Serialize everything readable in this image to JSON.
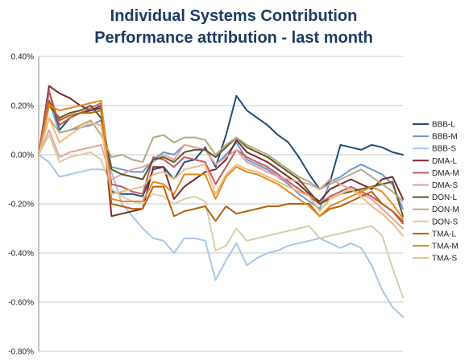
{
  "chart_data": {
    "type": "line",
    "title": "Individual Systems Contribution",
    "subtitle": "Performance attribution - last month",
    "xlabel": "",
    "ylabel": "",
    "ylim": [
      -0.8,
      0.4
    ],
    "yticks": [
      0.4,
      0.2,
      0.0,
      -0.2,
      -0.4,
      -0.6,
      -0.8
    ],
    "ytick_labels": [
      "0.40%",
      "0.20%",
      "0.00%",
      "-0.20%",
      "-0.40%",
      "-0.60%",
      "-0.80%"
    ],
    "grid": true,
    "legend_position": "right",
    "x": [
      0,
      1,
      2,
      3,
      4,
      5,
      6,
      7,
      8,
      9,
      10,
      11,
      12,
      13,
      14,
      15,
      16,
      17,
      18,
      19,
      20,
      21,
      22,
      23,
      24,
      25,
      26,
      27,
      28,
      29,
      30,
      31,
      32,
      33,
      34,
      35
    ],
    "series": [
      {
        "name": "BBB-L",
        "color": "#1f4e79",
        "values": [
          0,
          0.26,
          0.1,
          0.15,
          0.17,
          0.18,
          0.19,
          -0.15,
          -0.16,
          -0.16,
          -0.17,
          -0.06,
          -0.05,
          -0.1,
          -0.03,
          -0.02,
          0.03,
          -0.05,
          0.08,
          0.24,
          0.18,
          0.15,
          0.12,
          0.08,
          0.05,
          -0.01,
          -0.08,
          -0.14,
          -0.11,
          0.04,
          0.03,
          0.02,
          0.04,
          0.03,
          0.01,
          0.0
        ]
      },
      {
        "name": "BBB-M",
        "color": "#6a9ad0",
        "values": [
          0,
          0.22,
          0.09,
          0.1,
          0.11,
          0.12,
          0.14,
          -0.05,
          -0.06,
          -0.07,
          -0.07,
          -0.02,
          0.01,
          0.0,
          0.04,
          0.03,
          0.02,
          -0.04,
          0.0,
          0.05,
          -0.02,
          -0.04,
          -0.06,
          -0.09,
          -0.12,
          -0.16,
          -0.19,
          -0.22,
          -0.11,
          -0.09,
          -0.06,
          -0.04,
          -0.06,
          -0.08,
          -0.12,
          -0.22
        ]
      },
      {
        "name": "BBB-S",
        "color": "#a8c7ea",
        "values": [
          0,
          -0.03,
          -0.09,
          -0.08,
          -0.07,
          -0.06,
          -0.06,
          -0.07,
          -0.2,
          -0.25,
          -0.3,
          -0.34,
          -0.35,
          -0.4,
          -0.34,
          -0.34,
          -0.35,
          -0.51,
          -0.43,
          -0.36,
          -0.45,
          -0.42,
          -0.4,
          -0.39,
          -0.37,
          -0.36,
          -0.35,
          -0.34,
          -0.36,
          -0.38,
          -0.36,
          -0.38,
          -0.45,
          -0.55,
          -0.62,
          -0.66
        ]
      },
      {
        "name": "DMA-L",
        "color": "#7b2a2a",
        "values": [
          0,
          0.28,
          0.25,
          0.23,
          0.2,
          0.18,
          0.2,
          -0.25,
          -0.24,
          -0.23,
          -0.22,
          -0.05,
          -0.05,
          -0.18,
          -0.13,
          -0.1,
          -0.07,
          -0.06,
          -0.02,
          0.06,
          0.01,
          -0.01,
          -0.03,
          -0.06,
          -0.09,
          -0.12,
          -0.16,
          -0.19,
          -0.14,
          -0.12,
          -0.1,
          -0.12,
          -0.14,
          -0.1,
          -0.09,
          -0.18
        ]
      },
      {
        "name": "DMA-M",
        "color": "#c25c5c",
        "values": [
          0,
          0.26,
          0.12,
          0.15,
          0.17,
          0.19,
          0.21,
          -0.12,
          -0.13,
          -0.15,
          -0.16,
          -0.01,
          -0.02,
          -0.05,
          -0.01,
          -0.02,
          -0.03,
          -0.12,
          -0.05,
          0.02,
          -0.01,
          -0.03,
          -0.05,
          -0.08,
          -0.11,
          -0.14,
          -0.17,
          -0.2,
          -0.17,
          -0.15,
          -0.13,
          -0.15,
          -0.17,
          -0.2,
          -0.23,
          -0.27
        ]
      },
      {
        "name": "DMA-S",
        "color": "#e8a0a0",
        "values": [
          0,
          0.1,
          -0.01,
          0.01,
          0.02,
          0.03,
          0.04,
          -0.1,
          -0.08,
          -0.06,
          -0.05,
          -0.03,
          0.0,
          -0.02,
          0.04,
          0.03,
          0.02,
          -0.04,
          -0.01,
          0.02,
          -0.03,
          -0.05,
          -0.07,
          -0.09,
          -0.1,
          -0.11,
          -0.12,
          -0.14,
          -0.1,
          -0.12,
          -0.14,
          -0.16,
          -0.18,
          -0.22,
          -0.26,
          -0.3
        ]
      },
      {
        "name": "DON-L",
        "color": "#5e5a2a",
        "values": [
          0,
          0.2,
          0.15,
          0.17,
          0.18,
          0.2,
          0.15,
          -0.06,
          -0.08,
          -0.09,
          -0.1,
          -0.02,
          -0.01,
          -0.03,
          0.01,
          0.02,
          0.02,
          -0.01,
          0.03,
          0.07,
          0.03,
          0.01,
          -0.01,
          -0.04,
          -0.07,
          -0.1,
          -0.15,
          -0.2,
          -0.18,
          -0.16,
          -0.15,
          -0.14,
          -0.13,
          -0.12,
          -0.11,
          -0.25
        ]
      },
      {
        "name": "DON-M",
        "color": "#b5ab7e",
        "values": [
          0,
          0.15,
          0.09,
          0.1,
          0.12,
          0.14,
          0.08,
          -0.01,
          0.0,
          -0.02,
          -0.03,
          0.07,
          0.08,
          0.05,
          0.07,
          0.07,
          0.06,
          0.0,
          0.04,
          0.07,
          0.04,
          0.02,
          0.0,
          -0.03,
          -0.06,
          -0.09,
          -0.11,
          -0.14,
          -0.12,
          -0.1,
          -0.08,
          -0.06,
          -0.09,
          -0.12,
          -0.15,
          -0.19
        ]
      },
      {
        "name": "DON-S",
        "color": "#d8cfa8",
        "values": [
          0,
          0.08,
          -0.03,
          -0.01,
          0.0,
          0.01,
          -0.02,
          -0.14,
          -0.17,
          -0.19,
          -0.2,
          -0.16,
          -0.17,
          -0.2,
          -0.18,
          -0.17,
          -0.19,
          -0.39,
          -0.37,
          -0.3,
          -0.35,
          -0.34,
          -0.33,
          -0.32,
          -0.31,
          -0.3,
          -0.29,
          -0.34,
          -0.33,
          -0.32,
          -0.31,
          -0.3,
          -0.29,
          -0.33,
          -0.46,
          -0.58
        ]
      },
      {
        "name": "TMA-L",
        "color": "#b8620e",
        "values": [
          0,
          0.22,
          0.14,
          0.16,
          0.17,
          0.17,
          0.18,
          -0.2,
          -0.21,
          -0.22,
          -0.22,
          -0.13,
          -0.13,
          -0.25,
          -0.23,
          -0.22,
          -0.21,
          -0.27,
          -0.21,
          -0.24,
          -0.23,
          -0.22,
          -0.21,
          -0.21,
          -0.2,
          -0.2,
          -0.2,
          -0.25,
          -0.22,
          -0.21,
          -0.19,
          -0.17,
          -0.15,
          -0.2,
          -0.23,
          -0.28
        ]
      },
      {
        "name": "TMA-M",
        "color": "#e58a1f",
        "values": [
          0,
          0.2,
          0.18,
          0.19,
          0.2,
          0.21,
          0.22,
          -0.18,
          -0.19,
          -0.19,
          -0.19,
          -0.11,
          -0.12,
          -0.16,
          -0.08,
          -0.08,
          -0.08,
          -0.18,
          -0.09,
          -0.05,
          -0.07,
          -0.08,
          -0.1,
          -0.12,
          -0.15,
          -0.18,
          -0.21,
          -0.25,
          -0.21,
          -0.19,
          -0.17,
          -0.15,
          -0.13,
          -0.15,
          -0.2,
          -0.26
        ]
      },
      {
        "name": "TMA-S",
        "color": "#f2b97a",
        "values": [
          0,
          0.15,
          0.05,
          0.08,
          0.11,
          0.13,
          0.12,
          -0.16,
          -0.15,
          -0.14,
          -0.13,
          -0.08,
          -0.07,
          -0.1,
          -0.06,
          -0.05,
          -0.04,
          -0.16,
          -0.08,
          -0.04,
          -0.06,
          -0.07,
          -0.09,
          -0.11,
          -0.13,
          -0.15,
          -0.17,
          -0.23,
          -0.18,
          -0.16,
          -0.14,
          -0.17,
          -0.21,
          -0.24,
          -0.28,
          -0.33
        ]
      }
    ]
  }
}
